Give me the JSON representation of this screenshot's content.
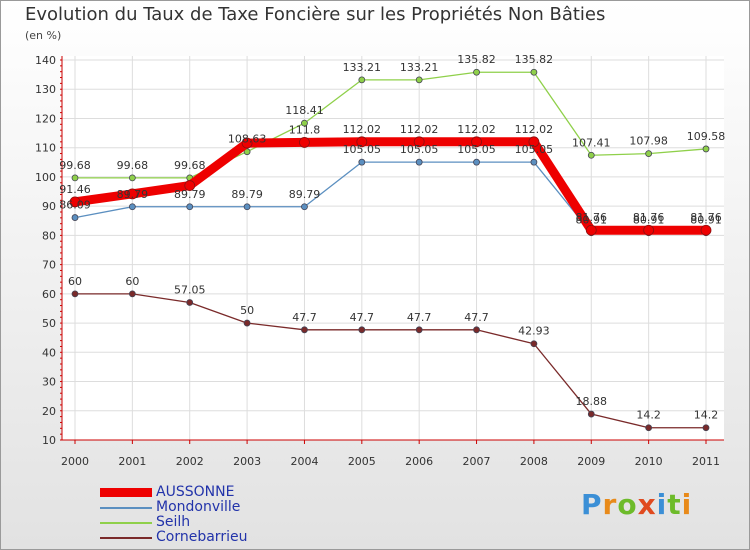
{
  "header": {
    "title": "Evolution du Taux de Taxe Foncière sur les Propriétés Non Bâties",
    "unit": "(en %)"
  },
  "logo": {
    "letters": [
      "P",
      "r",
      "o",
      "x",
      "i",
      "t",
      "i"
    ],
    "colors": [
      "#3b8fd6",
      "#e88a1a",
      "#6dbb2a",
      "#e04a1f",
      "#3b8fd6",
      "#6dbb2a",
      "#e88a1a"
    ]
  },
  "chart_data": {
    "type": "line",
    "x": [
      "2000",
      "2001",
      "2002",
      "2003",
      "2004",
      "2005",
      "2006",
      "2007",
      "2008",
      "2009",
      "2010",
      "2011"
    ],
    "ylim": [
      10,
      140
    ],
    "yticks": [
      10,
      20,
      30,
      40,
      50,
      60,
      70,
      80,
      90,
      100,
      110,
      120,
      130,
      140
    ],
    "grid": true,
    "legend_position": "bottom-left",
    "series": [
      {
        "name": "AUSSONNE",
        "color": "#ee0000",
        "values": [
          91.46,
          94.2,
          97.05,
          111.58,
          111.8,
          112.02,
          112.02,
          112.02,
          112.02,
          81.76,
          81.76,
          81.76
        ],
        "labels": [
          "91.46",
          "",
          "",
          "",
          "111.8",
          "112.02",
          "112.02",
          "112.02",
          "112.02",
          "81.76",
          "81.76",
          "81.76"
        ]
      },
      {
        "name": "Mondonville",
        "color": "#5b8fc0",
        "values": [
          86.09,
          89.79,
          89.79,
          89.79,
          89.79,
          105.05,
          105.05,
          105.05,
          105.05,
          80.91,
          80.91,
          80.91
        ],
        "labels": [
          "86.09",
          "89.79",
          "89.79",
          "89.79",
          "89.79",
          "105.05",
          "105.05",
          "105.05",
          "105.05",
          "80.91",
          "80.91",
          "80.91"
        ]
      },
      {
        "name": "Seilh",
        "color": "#8fd04a",
        "values": [
          99.68,
          99.68,
          99.68,
          108.63,
          118.41,
          133.21,
          133.21,
          135.82,
          135.82,
          107.41,
          107.98,
          109.58
        ],
        "labels": [
          "99.68",
          "99.68",
          "99.68",
          "108.63",
          "118.41",
          "133.21",
          "133.21",
          "135.82",
          "135.82",
          "107.41",
          "107.98",
          "109.58"
        ]
      },
      {
        "name": "Cornebarrieu",
        "color": "#7a2a2a",
        "values": [
          60,
          60,
          57.05,
          50,
          47.7,
          47.7,
          47.7,
          47.7,
          42.93,
          18.88,
          14.2,
          14.2
        ],
        "labels": [
          "60",
          "60",
          "57.05",
          "50",
          "47.7",
          "47.7",
          "47.7",
          "47.7",
          "42.93",
          "18.88",
          "14.2",
          "14.2"
        ]
      }
    ]
  }
}
